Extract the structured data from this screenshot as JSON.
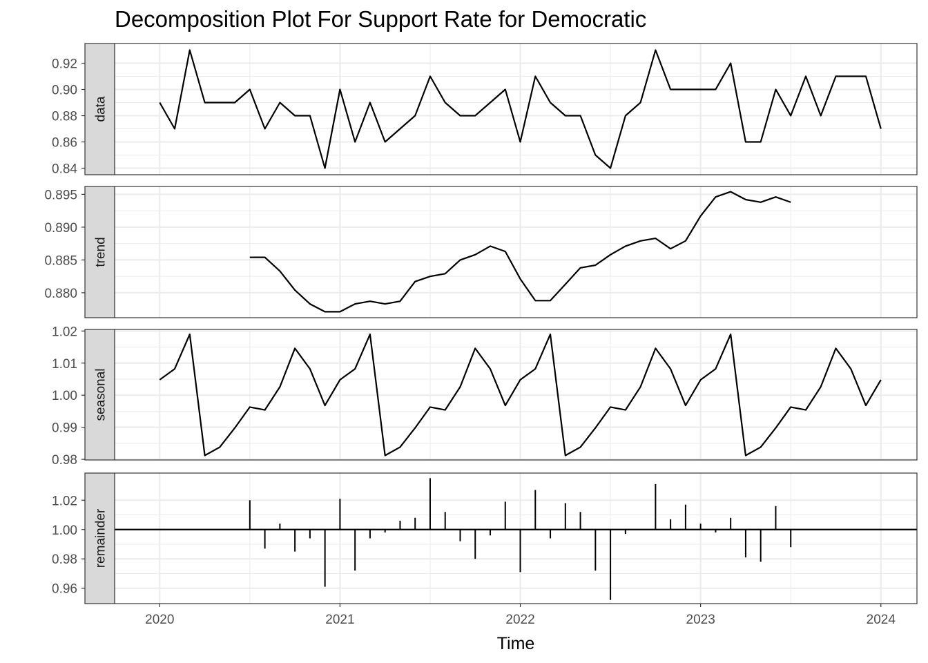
{
  "chart_data": {
    "type": "line",
    "title": "Decomposition Plot For Support Rate for Democratic",
    "xlabel": "Time",
    "x_ticks": [
      "2020",
      "2021",
      "2022",
      "2023",
      "2024"
    ],
    "x_start": 2020.0,
    "x_step_months": 1,
    "x_range": [
      2019.75,
      2024.2
    ],
    "facets": [
      {
        "name": "data",
        "kind": "line",
        "ylim": [
          0.835,
          0.935
        ],
        "yticks": [
          0.84,
          0.86,
          0.88,
          0.9,
          0.92
        ],
        "ytick_labels": [
          "0.84",
          "0.86",
          "0.88",
          "0.90",
          "0.92"
        ],
        "values": [
          0.89,
          0.87,
          0.93,
          0.89,
          0.89,
          0.89,
          0.9,
          0.87,
          0.89,
          0.88,
          0.88,
          0.84,
          0.9,
          0.86,
          0.89,
          0.86,
          0.87,
          0.88,
          0.91,
          0.89,
          0.88,
          0.88,
          0.89,
          0.9,
          0.86,
          0.91,
          0.89,
          0.88,
          0.88,
          0.85,
          0.84,
          0.88,
          0.89,
          0.93,
          0.9,
          0.9,
          0.9,
          0.9,
          0.92,
          0.86,
          0.86,
          0.9,
          0.88,
          0.91,
          0.88,
          0.91,
          0.91,
          0.91,
          0.87
        ]
      },
      {
        "name": "trend",
        "kind": "line",
        "ylim": [
          0.8762,
          0.8962
        ],
        "yticks": [
          0.88,
          0.885,
          0.89,
          0.895
        ],
        "ytick_labels": [
          "0.880",
          "0.885",
          "0.890",
          "0.895"
        ],
        "values": [
          null,
          null,
          null,
          null,
          null,
          null,
          0.8854,
          0.8854,
          0.8833,
          0.8804,
          0.8783,
          0.8771,
          0.8771,
          0.8783,
          0.8787,
          0.8783,
          0.8787,
          0.8817,
          0.8825,
          0.8829,
          0.885,
          0.8858,
          0.8871,
          0.8863,
          0.8821,
          0.8788,
          0.8788,
          0.8813,
          0.8838,
          0.8842,
          0.8858,
          0.8871,
          0.8879,
          0.8883,
          0.8867,
          0.8879,
          0.8917,
          0.8946,
          0.8954,
          0.8942,
          0.8938,
          0.8946,
          0.8938,
          null,
          null,
          null,
          null,
          null,
          null
        ]
      },
      {
        "name": "seasonal",
        "kind": "line",
        "ylim": [
          0.9798,
          1.0205
        ],
        "yticks": [
          0.98,
          0.99,
          1.0,
          1.01,
          1.02
        ],
        "ytick_labels": [
          "0.98",
          "0.99",
          "1.00",
          "1.01",
          "1.02"
        ],
        "values": [
          1.0048,
          1.0082,
          1.019,
          0.9812,
          0.9838,
          0.9898,
          0.9963,
          0.9954,
          1.0026,
          1.0146,
          1.0082,
          0.9968,
          1.0048,
          1.0082,
          1.019,
          0.9812,
          0.9838,
          0.9898,
          0.9963,
          0.9954,
          1.0026,
          1.0146,
          1.0082,
          0.9968,
          1.0048,
          1.0082,
          1.019,
          0.9812,
          0.9838,
          0.9898,
          0.9963,
          0.9954,
          1.0026,
          1.0146,
          1.0082,
          0.9968,
          1.0048,
          1.0082,
          1.019,
          0.9812,
          0.9838,
          0.9898,
          0.9963,
          0.9954,
          1.0026,
          1.0146,
          1.0082,
          0.9968,
          1.0048
        ]
      },
      {
        "name": "remainder",
        "kind": "bar",
        "baseline": 1.0,
        "ylim": [
          0.9495,
          1.0385
        ],
        "yticks": [
          0.96,
          0.98,
          1.0,
          1.02
        ],
        "ytick_labels": [
          "0.96",
          "0.98",
          "1.00",
          "1.02"
        ],
        "values": [
          null,
          null,
          null,
          null,
          null,
          null,
          1.02,
          0.987,
          1.004,
          0.985,
          0.994,
          0.961,
          1.021,
          0.972,
          0.994,
          0.998,
          1.006,
          1.008,
          1.035,
          1.012,
          0.992,
          0.98,
          0.996,
          1.019,
          0.971,
          1.027,
          0.994,
          1.018,
          1.012,
          0.972,
          0.952,
          0.997,
          1.0,
          1.031,
          1.007,
          1.017,
          1.004,
          0.998,
          1.008,
          0.981,
          0.978,
          1.016,
          0.988,
          null,
          null,
          null,
          null,
          null,
          null
        ]
      }
    ],
    "grid": true,
    "legend": "none",
    "colors": {
      "line": "#000000",
      "strip_fill": "#d9d9d9",
      "grid": "#ebebeb",
      "panel_border": "#333333"
    }
  }
}
